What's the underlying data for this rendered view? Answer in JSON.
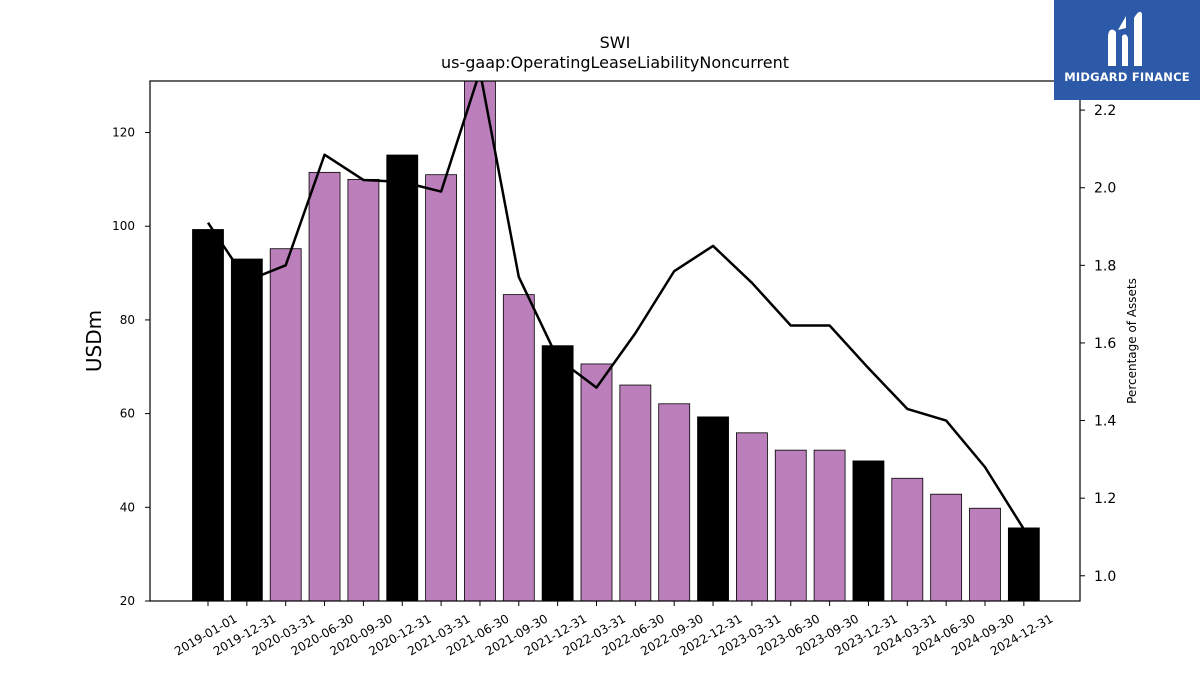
{
  "logo": {
    "text": "MIDGARD FINANCE"
  },
  "chart_data": {
    "type": "bar",
    "title": "SWI",
    "subtitle": "us-gaap:OperatingLeaseLiabilityNoncurrent",
    "ylabel": "USDm",
    "y2label": "Percentage of Assets",
    "ylim": [
      20,
      131
    ],
    "y2lim": [
      0.935,
      2.275
    ],
    "yticks": [
      20,
      40,
      60,
      80,
      100,
      120
    ],
    "y2ticks": [
      1.0,
      1.2,
      1.4,
      1.6,
      1.8,
      2.0,
      2.2
    ],
    "categories": [
      "2019-01-01",
      "2019-12-31",
      "2020-03-31",
      "2020-06-30",
      "2020-09-30",
      "2020-12-31",
      "2021-03-31",
      "2021-06-30",
      "2021-09-30",
      "2021-12-31",
      "2022-03-31",
      "2022-06-30",
      "2022-09-30",
      "2022-12-31",
      "2023-03-31",
      "2023-06-30",
      "2023-09-30",
      "2023-12-31",
      "2024-03-31",
      "2024-06-30",
      "2024-09-30",
      "2024-12-31"
    ],
    "series": [
      {
        "type": "bar",
        "values": [
          99.3,
          93.0,
          95.2,
          111.5,
          110.0,
          115.2,
          111.0,
          131.0,
          85.4,
          74.5,
          70.6,
          66.1,
          62.1,
          59.3,
          55.9,
          52.2,
          52.2,
          49.9,
          46.2,
          42.8,
          39.8,
          35.6
        ]
      },
      {
        "type": "line",
        "axis": "right",
        "values": [
          1.91,
          1.76,
          1.8,
          2.085,
          2.02,
          2.015,
          1.99,
          2.3,
          1.77,
          1.56,
          1.485,
          1.625,
          1.785,
          1.85,
          1.755,
          1.645,
          1.645,
          1.535,
          1.43,
          1.4,
          1.28,
          1.12
        ]
      }
    ],
    "colors": {
      "annual": "#000000",
      "quarterly": "#bb7fbc",
      "line": "#000000"
    },
    "annual_categories": [
      "2019-01-01",
      "2019-12-31",
      "2020-12-31",
      "2021-12-31",
      "2022-12-31",
      "2023-12-31",
      "2024-12-31"
    ]
  }
}
